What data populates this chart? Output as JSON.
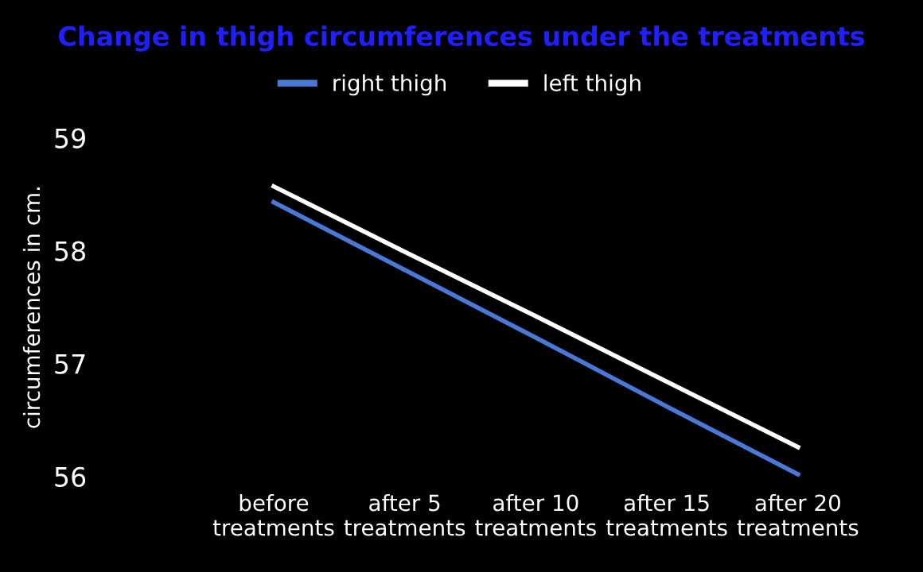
{
  "chart_data": {
    "type": "line",
    "title": "Change in thigh circumferences under the treatments",
    "ylabel": "circumferences in cm.",
    "categories": [
      "before\ntreatments",
      "after 5\ntreatments",
      "after 10\ntreatments",
      "after 15\ntreatments",
      "after 20\ntreatments"
    ],
    "series": [
      {
        "name": "right thigh",
        "color": "#4a78d6",
        "values": [
          58.43,
          57.83,
          57.23,
          56.62,
          56.02
        ]
      },
      {
        "name": "left thigh",
        "color": "#ffffff",
        "values": [
          58.57,
          57.99,
          57.42,
          56.84,
          56.26
        ]
      }
    ],
    "ylim": [
      56,
      59
    ],
    "yticks": [
      56,
      57,
      58,
      59
    ],
    "grid": false,
    "legend": "top",
    "marker": "none",
    "line_style": "solid"
  }
}
